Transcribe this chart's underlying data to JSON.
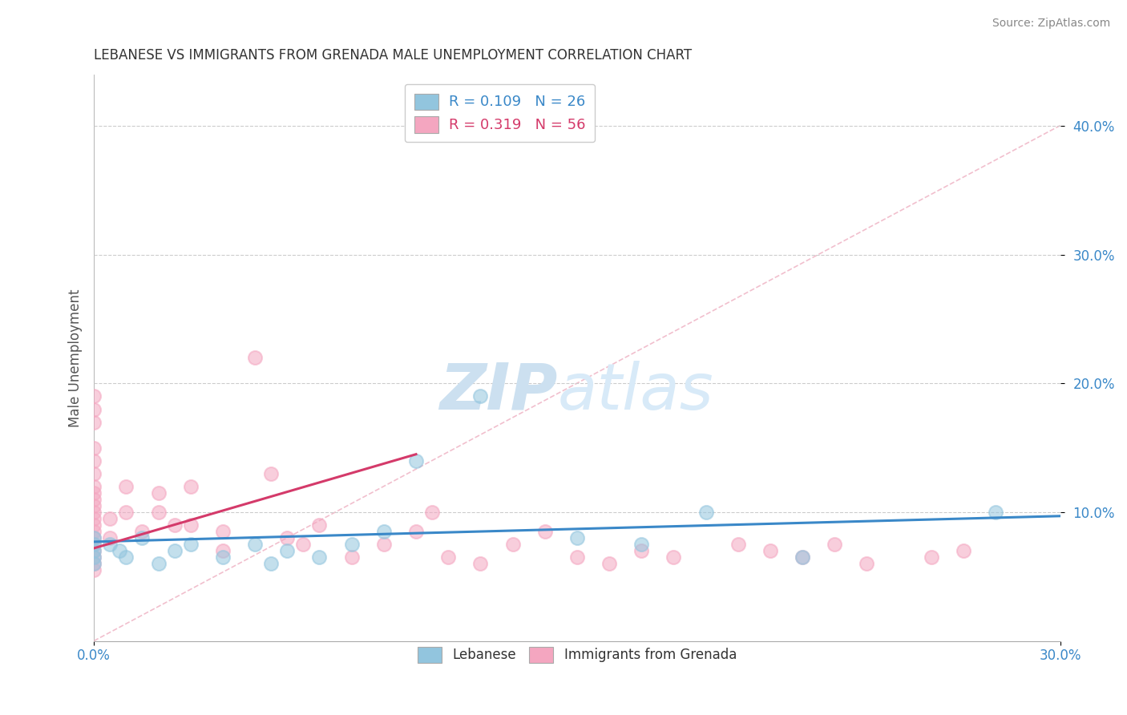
{
  "title": "LEBANESE VS IMMIGRANTS FROM GRENADA MALE UNEMPLOYMENT CORRELATION CHART",
  "source": "Source: ZipAtlas.com",
  "xlim": [
    0.0,
    0.3
  ],
  "ylim": [
    0.0,
    0.44
  ],
  "ytick_positions": [
    0.1,
    0.2,
    0.3,
    0.4
  ],
  "xtick_positions": [
    0.0,
    0.3
  ],
  "legend_r1": "R = 0.109",
  "legend_n1": "N = 26",
  "legend_r2": "R = 0.319",
  "legend_n2": "N = 56",
  "color_blue": "#92c5de",
  "color_pink": "#f4a6c0",
  "color_blue_line": "#3a88c8",
  "color_pink_line": "#d43a6a",
  "color_diag_line": "#f0b8c8",
  "watermark_zip": "ZIP",
  "watermark_atlas": "atlas",
  "watermark_color": "#d6eaf8",
  "background": "#ffffff",
  "Lebanese_x": [
    0.0,
    0.0,
    0.0,
    0.0,
    0.0,
    0.005,
    0.008,
    0.01,
    0.015,
    0.02,
    0.025,
    0.03,
    0.04,
    0.05,
    0.055,
    0.06,
    0.07,
    0.08,
    0.09,
    0.1,
    0.12,
    0.15,
    0.17,
    0.19,
    0.22,
    0.28
  ],
  "Lebanese_y": [
    0.07,
    0.075,
    0.065,
    0.08,
    0.06,
    0.075,
    0.07,
    0.065,
    0.08,
    0.06,
    0.07,
    0.075,
    0.065,
    0.075,
    0.06,
    0.07,
    0.065,
    0.075,
    0.085,
    0.14,
    0.19,
    0.08,
    0.075,
    0.1,
    0.065,
    0.1
  ],
  "Grenada_x": [
    0.0,
    0.0,
    0.0,
    0.0,
    0.0,
    0.0,
    0.0,
    0.0,
    0.0,
    0.0,
    0.0,
    0.0,
    0.0,
    0.0,
    0.0,
    0.0,
    0.0,
    0.0,
    0.0,
    0.0,
    0.005,
    0.005,
    0.01,
    0.01,
    0.015,
    0.02,
    0.02,
    0.025,
    0.03,
    0.03,
    0.04,
    0.04,
    0.05,
    0.055,
    0.06,
    0.065,
    0.07,
    0.08,
    0.09,
    0.1,
    0.105,
    0.11,
    0.12,
    0.13,
    0.14,
    0.15,
    0.16,
    0.17,
    0.18,
    0.2,
    0.21,
    0.22,
    0.23,
    0.24,
    0.26,
    0.27
  ],
  "Grenada_y": [
    0.055,
    0.06,
    0.065,
    0.07,
    0.075,
    0.08,
    0.085,
    0.09,
    0.095,
    0.1,
    0.105,
    0.11,
    0.115,
    0.12,
    0.13,
    0.14,
    0.15,
    0.17,
    0.18,
    0.19,
    0.08,
    0.095,
    0.1,
    0.12,
    0.085,
    0.1,
    0.115,
    0.09,
    0.12,
    0.09,
    0.07,
    0.085,
    0.22,
    0.13,
    0.08,
    0.075,
    0.09,
    0.065,
    0.075,
    0.085,
    0.1,
    0.065,
    0.06,
    0.075,
    0.085,
    0.065,
    0.06,
    0.07,
    0.065,
    0.075,
    0.07,
    0.065,
    0.075,
    0.06,
    0.065,
    0.07
  ],
  "blue_line_x": [
    0.0,
    0.3
  ],
  "blue_line_y": [
    0.077,
    0.097
  ],
  "pink_line_x": [
    0.0,
    0.1
  ],
  "pink_line_y": [
    0.072,
    0.145
  ]
}
